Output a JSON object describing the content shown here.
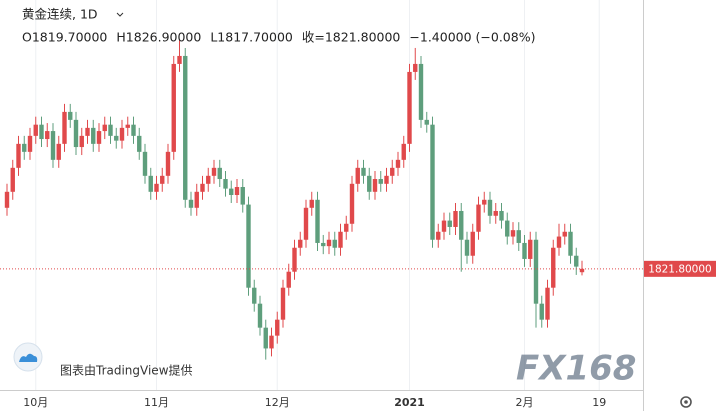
{
  "header": {
    "symbol": "黄金连续, 1D",
    "ohlc": [
      "O1819.70000",
      "H1826.90000",
      "L1817.70000",
      "收=1821.80000",
      "−1.40000 (−0.08%)"
    ],
    "credit": "图表由TradingView提供",
    "watermark": "FX168"
  },
  "chart_data": {
    "type": "candlestick",
    "categories": [
      null,
      null,
      null,
      null,
      null,
      "10月",
      null,
      null,
      null,
      null,
      null,
      null,
      null,
      null,
      null,
      null,
      null,
      null,
      null,
      null,
      null,
      null,
      null,
      null,
      null,
      null,
      "11月",
      null,
      null,
      null,
      null,
      null,
      null,
      null,
      null,
      null,
      null,
      null,
      null,
      null,
      null,
      null,
      null,
      null,
      null,
      null,
      null,
      "12月",
      null,
      null,
      null,
      null,
      null,
      null,
      null,
      null,
      null,
      null,
      null,
      null,
      null,
      null,
      null,
      null,
      null,
      null,
      null,
      null,
      null,
      null,
      "2021",
      null,
      null,
      null,
      null,
      null,
      null,
      null,
      null,
      null,
      null,
      null,
      null,
      null,
      null,
      null,
      null,
      null,
      null,
      null,
      "2月",
      null,
      null,
      null,
      null,
      null,
      null,
      null,
      null,
      null,
      null,
      null,
      null,
      "19"
    ],
    "open": [
      1860,
      1870,
      1885,
      1900,
      1895,
      1905,
      1912,
      1903,
      1908,
      1890,
      1900,
      1920,
      1915,
      1898,
      1905,
      1910,
      1900,
      1908,
      1912,
      1905,
      1902,
      1910,
      1912,
      1905,
      1895,
      1880,
      1870,
      1875,
      1880,
      1895,
      1950,
      1955,
      1865,
      1860,
      1870,
      1875,
      1880,
      1885,
      1878,
      1872,
      1868,
      1873,
      1862,
      1810,
      1800,
      1785,
      1772,
      1780,
      1790,
      1810,
      1820,
      1835,
      1840,
      1860,
      1865,
      1838,
      1836,
      1840,
      1835,
      1845,
      1850,
      1875,
      1885,
      1880,
      1870,
      1878,
      1875,
      1880,
      1885,
      1890,
      1900,
      1945,
      1950,
      1915,
      1912,
      1840,
      1845,
      1852,
      1848,
      1858,
      1840,
      1830,
      1845,
      1862,
      1865,
      1855,
      1858,
      1852,
      1842,
      1846,
      1838,
      1828,
      1840,
      1800,
      1790,
      1810,
      1835,
      1842,
      1845,
      1830,
      1819.7,
      null,
      null,
      null
    ],
    "high": [
      1875,
      1890,
      1905,
      1905,
      1910,
      1917,
      1917,
      1913,
      1913,
      1905,
      1925,
      1925,
      1920,
      1910,
      1915,
      1915,
      1913,
      1917,
      1917,
      1910,
      1915,
      1917,
      1917,
      1910,
      1900,
      1885,
      1880,
      1885,
      1900,
      1955,
      1965,
      1960,
      1870,
      1875,
      1880,
      1885,
      1890,
      1890,
      1883,
      1877,
      1878,
      1878,
      1867,
      1815,
      1805,
      1790,
      1785,
      1795,
      1815,
      1825,
      1840,
      1845,
      1865,
      1870,
      1870,
      1843,
      1845,
      1845,
      1850,
      1855,
      1880,
      1890,
      1890,
      1885,
      1883,
      1883,
      1885,
      1890,
      1895,
      1905,
      1950,
      1960,
      1955,
      1920,
      1917,
      1850,
      1857,
      1857,
      1863,
      1863,
      1845,
      1850,
      1867,
      1870,
      1870,
      1863,
      1863,
      1857,
      1851,
      1851,
      1843,
      1845,
      1845,
      1805,
      1815,
      1840,
      1850,
      1850,
      1850,
      1835,
      1826.9,
      null,
      null,
      null
    ],
    "low": [
      1855,
      1865,
      1880,
      1890,
      1890,
      1900,
      1898,
      1898,
      1885,
      1885,
      1895,
      1910,
      1893,
      1893,
      1900,
      1895,
      1895,
      1903,
      1900,
      1897,
      1897,
      1905,
      1900,
      1890,
      1875,
      1865,
      1865,
      1870,
      1875,
      1890,
      1945,
      1860,
      1855,
      1855,
      1865,
      1870,
      1875,
      1873,
      1867,
      1863,
      1863,
      1857,
      1805,
      1795,
      1780,
      1765,
      1767,
      1775,
      1785,
      1805,
      1815,
      1830,
      1835,
      1855,
      1833,
      1831,
      1831,
      1830,
      1830,
      1840,
      1845,
      1870,
      1875,
      1865,
      1865,
      1870,
      1870,
      1875,
      1880,
      1885,
      1895,
      1940,
      1910,
      1907,
      1835,
      1835,
      1840,
      1843,
      1843,
      1820,
      1825,
      1825,
      1840,
      1857,
      1850,
      1850,
      1847,
      1837,
      1837,
      1833,
      1823,
      1823,
      1785,
      1785,
      1785,
      1805,
      1830,
      1837,
      1825,
      1818,
      1817.7,
      null,
      null,
      null
    ],
    "close": [
      1870,
      1885,
      1900,
      1895,
      1905,
      1912,
      1903,
      1908,
      1890,
      1900,
      1920,
      1915,
      1898,
      1905,
      1910,
      1900,
      1908,
      1912,
      1905,
      1902,
      1910,
      1912,
      1905,
      1895,
      1880,
      1870,
      1875,
      1880,
      1895,
      1950,
      1955,
      1865,
      1860,
      1870,
      1875,
      1880,
      1885,
      1878,
      1872,
      1868,
      1873,
      1862,
      1810,
      1800,
      1785,
      1772,
      1780,
      1790,
      1810,
      1820,
      1835,
      1840,
      1860,
      1865,
      1838,
      1836,
      1840,
      1835,
      1845,
      1850,
      1875,
      1885,
      1880,
      1870,
      1878,
      1875,
      1880,
      1885,
      1890,
      1900,
      1945,
      1950,
      1915,
      1912,
      1840,
      1845,
      1852,
      1848,
      1858,
      1840,
      1830,
      1845,
      1862,
      1865,
      1855,
      1858,
      1852,
      1842,
      1846,
      1838,
      1828,
      1840,
      1800,
      1790,
      1810,
      1835,
      1842,
      1845,
      1830,
      1823.2,
      1821.8,
      null,
      null,
      null
    ],
    "up_color": "#e0494b",
    "down_color": "#5e9e7c",
    "ylim": [
      1746,
      1990
    ],
    "last_price": {
      "value": 1821.8,
      "label": "1821.80000"
    },
    "grid": true
  }
}
